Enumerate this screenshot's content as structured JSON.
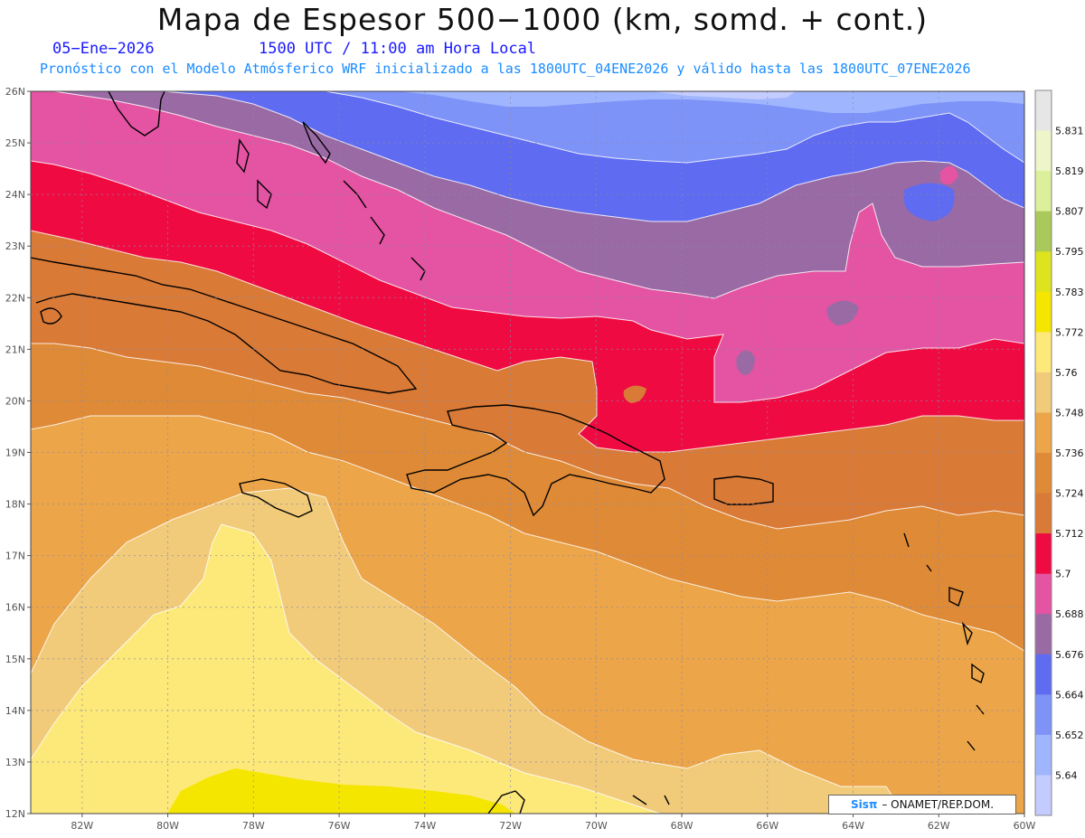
{
  "header": {
    "title": "Mapa de Espesor 500−1000 (km, somd. + cont.)",
    "date": "05−Ene−2026",
    "time": "1500 UTC / 11:00 am Hora Local",
    "forecast_line": "Pronóstico con el Modelo Atmósferico WRF inicializado a las 1800UTC_04ENE2026 y válido hasta las  1800UTC_07ENE2026"
  },
  "map": {
    "lat_labels": [
      "26N",
      "25N",
      "24N",
      "23N",
      "22N",
      "21N",
      "20N",
      "19N",
      "18N",
      "17N",
      "16N",
      "15N",
      "14N",
      "13N",
      "12N"
    ],
    "lon_labels": [
      "82W",
      "80W",
      "78W",
      "76W",
      "74W",
      "72W",
      "70W",
      "68W",
      "66W",
      "64W",
      "62W",
      "60W"
    ],
    "lat_range": [
      12,
      26
    ],
    "lon_range": [
      -83.2,
      -60
    ]
  },
  "colorbar": {
    "labels": [
      "5.831",
      "5.819",
      "5.807",
      "5.795",
      "5.783",
      "5.772",
      "5.76",
      "5.748",
      "5.736",
      "5.724",
      "5.712",
      "5.7",
      "5.688",
      "5.676",
      "5.664",
      "5.652",
      "5.64"
    ],
    "colors": [
      "#e6e6e6",
      "#eef5c8",
      "#dcef9a",
      "#a9c95b",
      "#dde31c",
      "#f5e600",
      "#fde87a",
      "#f1cb7a",
      "#eca548",
      "#df8a36",
      "#d97a37",
      "#ef0a41",
      "#e454a2",
      "#9a6aa5",
      "#5f6bf0",
      "#7e93f8",
      "#9fb5fe",
      "#c4cbff"
    ]
  },
  "colors": {
    "c572": "#fde87a",
    "c5772": "#f5e600",
    "c5748": "#f1cb7a",
    "c5736": "#eca548",
    "c5724": "#df8a36",
    "c5700": "#ef0a41",
    "c5688": "#e454a2",
    "c5676": "#9a6aa5",
    "c5664": "#5f6bf0",
    "c5652": "#7e93f8",
    "c5640": "#9fb5fe",
    "c5630": "#c4cbff"
  },
  "credit": {
    "brand": "Sisπ",
    "text": "– ONAMET/REP.DOM."
  }
}
